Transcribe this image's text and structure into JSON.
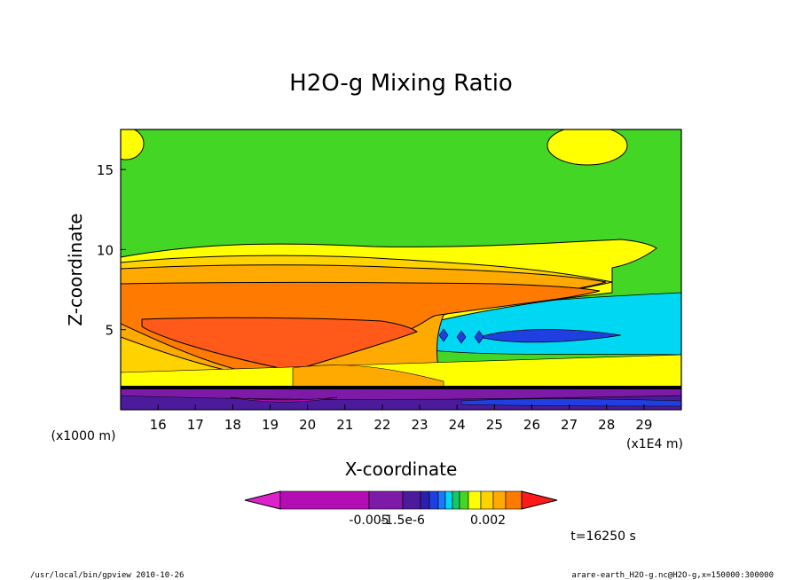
{
  "chart_data": {
    "type": "contour",
    "title": "H2O-g Mixing Ratio",
    "xlabel": "X-coordinate",
    "ylabel": "Z-coordinate",
    "x_unit_note": "(x1E4 m)",
    "y_unit_note": "(x1000 m)",
    "xlim": [
      15,
      30
    ],
    "ylim": [
      0,
      17.5
    ],
    "x_ticks": [
      "16",
      "17",
      "18",
      "19",
      "20",
      "21",
      "22",
      "23",
      "24",
      "25",
      "26",
      "27",
      "28",
      "29"
    ],
    "y_ticks": [
      "5",
      "10",
      "15"
    ],
    "colorbar": {
      "colors": [
        "#dd22cc",
        "#b40db4",
        "#7e1aa8",
        "#4b1b9c",
        "#2b1fb0",
        "#1f3fe0",
        "#1e78ff",
        "#00d7f2",
        "#15c865",
        "#44d625",
        "#ffff00",
        "#ffd200",
        "#ffaa00",
        "#ff7a00",
        "#ff1a1a"
      ],
      "labels": [
        "-0.005",
        "-1.5e-6",
        "0.002"
      ]
    },
    "time_label": "t=16250 s"
  },
  "footer": {
    "left": "/usr/local/bin/gpview  2010-10-26",
    "right": "arare-earth_H2O-g.nc@H2O-g,x=150000:300000"
  }
}
